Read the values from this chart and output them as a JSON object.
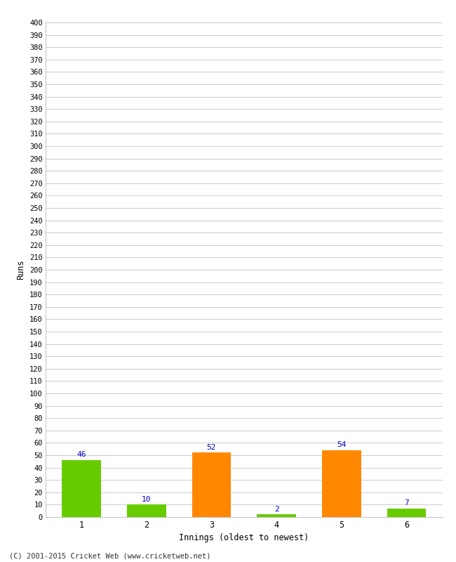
{
  "xlabel": "Innings (oldest to newest)",
  "ylabel": "Runs",
  "categories": [
    "1",
    "2",
    "3",
    "4",
    "5",
    "6"
  ],
  "values": [
    46,
    10,
    52,
    2,
    54,
    7
  ],
  "colors": [
    "#66cc00",
    "#66cc00",
    "#ff8800",
    "#66cc00",
    "#ff8800",
    "#66cc00"
  ],
  "ylim": [
    0,
    400
  ],
  "yticks": [
    0,
    10,
    20,
    30,
    40,
    50,
    60,
    70,
    80,
    90,
    100,
    110,
    120,
    130,
    140,
    150,
    160,
    170,
    180,
    190,
    200,
    210,
    220,
    230,
    240,
    250,
    260,
    270,
    280,
    290,
    300,
    310,
    320,
    330,
    340,
    350,
    360,
    370,
    380,
    390,
    400
  ],
  "background_color": "#ffffff",
  "grid_color": "#cccccc",
  "label_color": "#0000cc",
  "footer": "(C) 2001-2015 Cricket Web (www.cricketweb.net)",
  "bar_width": 0.6,
  "figsize": [
    6.5,
    8.0
  ],
  "dpi": 100
}
